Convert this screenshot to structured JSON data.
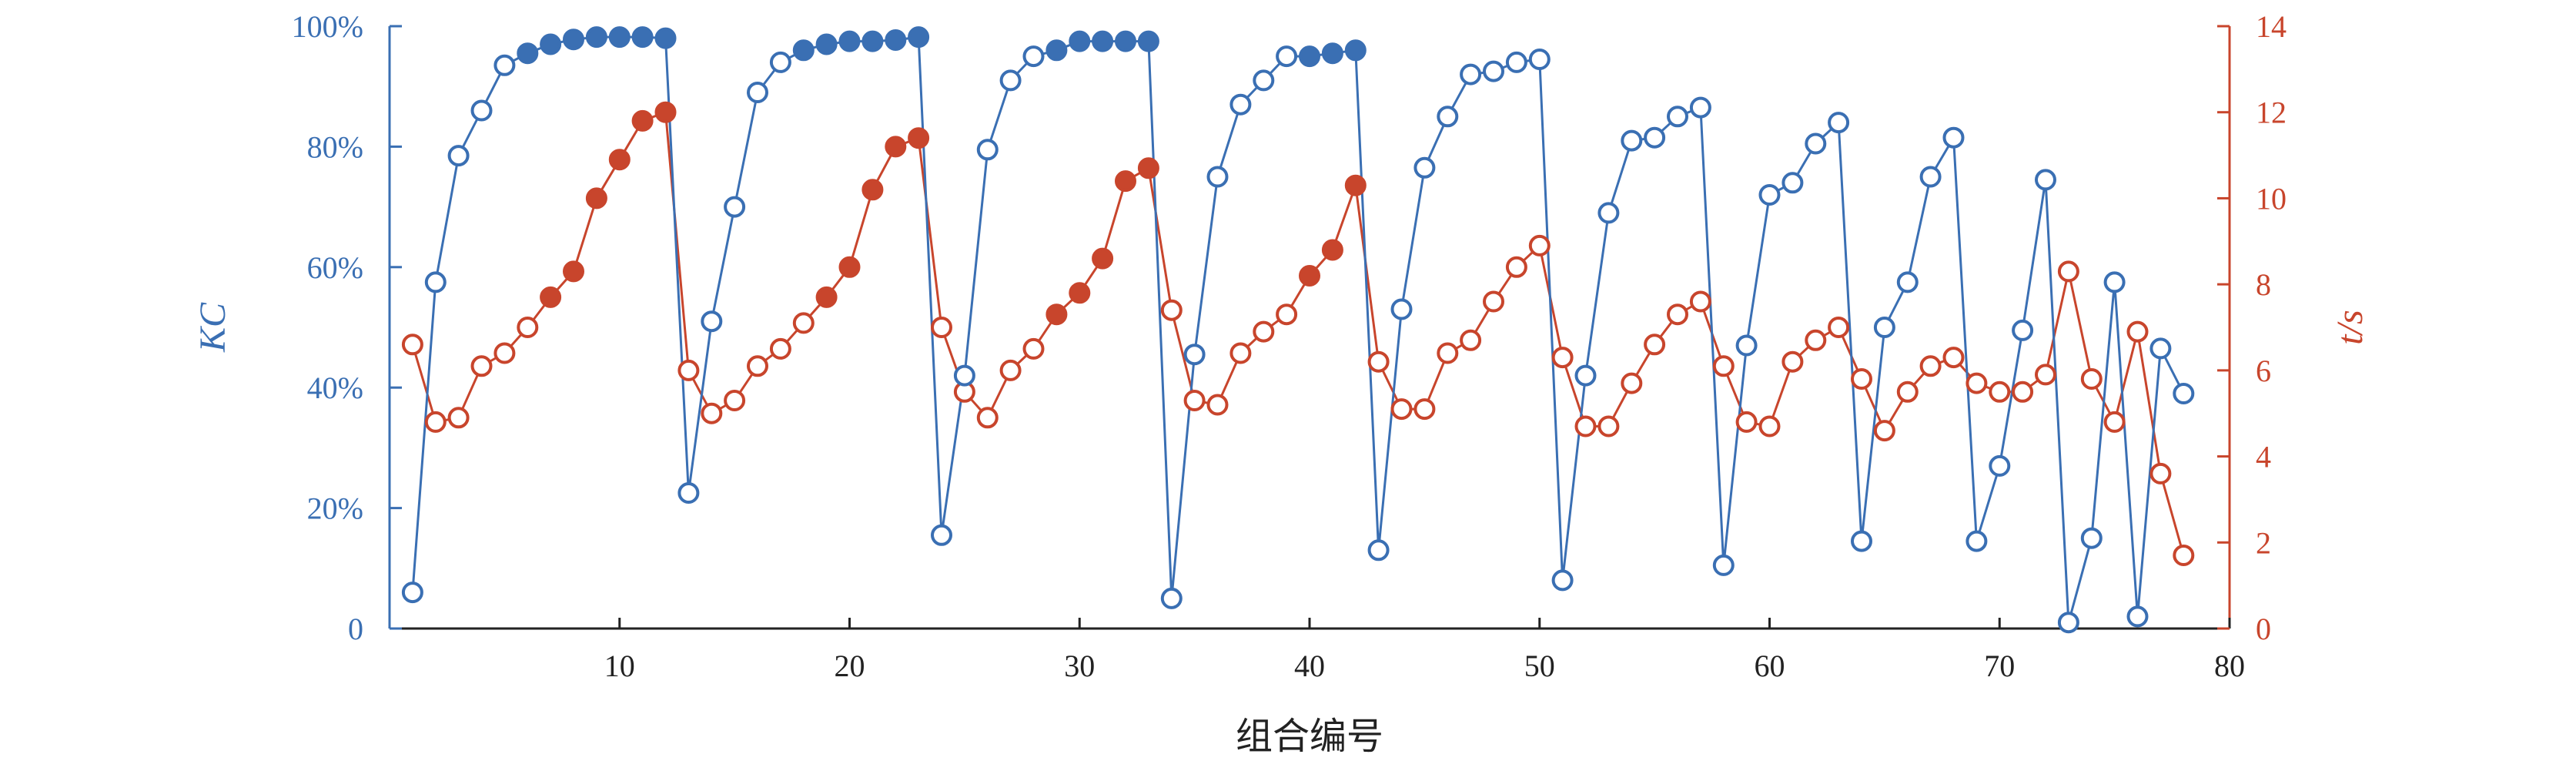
{
  "chart_data": {
    "type": "line",
    "xlabel": "组合编号",
    "ylabel_left": "KC",
    "ylabel_right": "t/s",
    "xlim": [
      0,
      80
    ],
    "ylim_left": [
      0,
      100
    ],
    "ylim_right": [
      0,
      14
    ],
    "x_ticks": [
      "10",
      "20",
      "30",
      "40",
      "50",
      "60",
      "70",
      "80"
    ],
    "x_tick_values": [
      10,
      20,
      30,
      40,
      50,
      60,
      70,
      80
    ],
    "y_left_ticks": [
      "0",
      "20%",
      "40%",
      "60%",
      "80%",
      "100%"
    ],
    "y_left_tick_values": [
      0,
      20,
      40,
      60,
      80,
      100
    ],
    "y_right_ticks": [
      "0",
      "2",
      "4",
      "6",
      "8",
      "10",
      "12",
      "14"
    ],
    "y_right_tick_values": [
      0,
      2,
      4,
      6,
      8,
      10,
      12,
      14
    ],
    "grid": false,
    "colors": {
      "kc": "#3a6fb3",
      "time": "#c8452c"
    },
    "x": [
      1,
      2,
      3,
      4,
      5,
      6,
      7,
      8,
      9,
      10,
      11,
      12,
      13,
      14,
      15,
      16,
      17,
      18,
      19,
      20,
      21,
      22,
      23,
      24,
      25,
      26,
      27,
      28,
      29,
      30,
      31,
      32,
      33,
      34,
      35,
      36,
      37,
      38,
      39,
      40,
      41,
      42,
      43,
      44,
      45,
      46,
      47,
      48,
      49,
      50,
      51,
      52,
      53,
      54,
      55,
      56,
      57,
      58,
      59,
      60,
      61,
      62,
      63,
      64,
      65,
      66,
      67,
      68,
      69,
      70,
      71,
      72,
      73,
      74,
      75,
      76,
      77,
      78
    ],
    "series": [
      {
        "axis": "left",
        "values": [
          6,
          57.5,
          78.5,
          86,
          93.5,
          95.5,
          97,
          97.8,
          98.2,
          98.2,
          98.2,
          98,
          22.5,
          51,
          70,
          89,
          94,
          96,
          97,
          97.5,
          97.5,
          97.7,
          98.2,
          15.5,
          42,
          79.5,
          91,
          95,
          96,
          97.5,
          97.5,
          97.5,
          97.5,
          5,
          45.5,
          75,
          87,
          91,
          95,
          95,
          95.5,
          96,
          13,
          53,
          76.5,
          85,
          92,
          92.5,
          94,
          94.5,
          8,
          42,
          69,
          81,
          81.5,
          85,
          86.5,
          10.5,
          47,
          72,
          74,
          80.5,
          84,
          14.5,
          50,
          57.5,
          75,
          81.5,
          14.5,
          27,
          49.5,
          74.5,
          1,
          15,
          57.5,
          2,
          46.5,
          39
        ],
        "filled": [
          false,
          false,
          false,
          false,
          false,
          true,
          true,
          true,
          true,
          true,
          true,
          true,
          false,
          false,
          false,
          false,
          false,
          true,
          true,
          true,
          true,
          true,
          true,
          false,
          false,
          false,
          false,
          false,
          true,
          true,
          true,
          true,
          true,
          false,
          false,
          false,
          false,
          false,
          false,
          true,
          true,
          true,
          false,
          false,
          false,
          false,
          false,
          false,
          false,
          false,
          false,
          false,
          false,
          false,
          false,
          false,
          false,
          false,
          false,
          false,
          false,
          false,
          false,
          false,
          false,
          false,
          false,
          false,
          false,
          false,
          false,
          false,
          false,
          false,
          false,
          false,
          false,
          false
        ]
      },
      {
        "axis": "right",
        "values": [
          6.6,
          4.8,
          4.9,
          6.1,
          6.4,
          7,
          7.7,
          8.3,
          10,
          10.9,
          11.8,
          12,
          6,
          5,
          5.3,
          6.1,
          6.5,
          7.1,
          7.7,
          8.4,
          10.2,
          11.2,
          11.4,
          7,
          5.5,
          4.9,
          6,
          6.5,
          7.3,
          7.8,
          8.6,
          10.4,
          10.7,
          7.4,
          5.3,
          5.2,
          6.4,
          6.9,
          7.3,
          8.2,
          8.8,
          10.3,
          6.2,
          5.1,
          5.1,
          6.4,
          6.7,
          7.6,
          8.4,
          8.9,
          6.3,
          4.7,
          4.7,
          5.7,
          6.6,
          7.3,
          7.6,
          6.1,
          4.8,
          4.7,
          6.2,
          6.7,
          7,
          5.8,
          4.6,
          5.5,
          6.1,
          6.3,
          5.7,
          5.5,
          5.5,
          5.9,
          8.3,
          5.8,
          4.8,
          6.9,
          3.6,
          1.7
        ],
        "filled": [
          false,
          false,
          false,
          false,
          false,
          false,
          true,
          true,
          true,
          true,
          true,
          true,
          false,
          false,
          false,
          false,
          false,
          false,
          true,
          true,
          true,
          true,
          true,
          false,
          false,
          false,
          false,
          false,
          true,
          true,
          true,
          true,
          true,
          false,
          false,
          false,
          false,
          false,
          false,
          true,
          true,
          true,
          false,
          false,
          false,
          false,
          false,
          false,
          false,
          false,
          false,
          false,
          false,
          false,
          false,
          false,
          false,
          false,
          false,
          false,
          false,
          false,
          false,
          false,
          false,
          false,
          false,
          false,
          false,
          false,
          false,
          false,
          false,
          false,
          false,
          false,
          false,
          false
        ]
      }
    ]
  }
}
